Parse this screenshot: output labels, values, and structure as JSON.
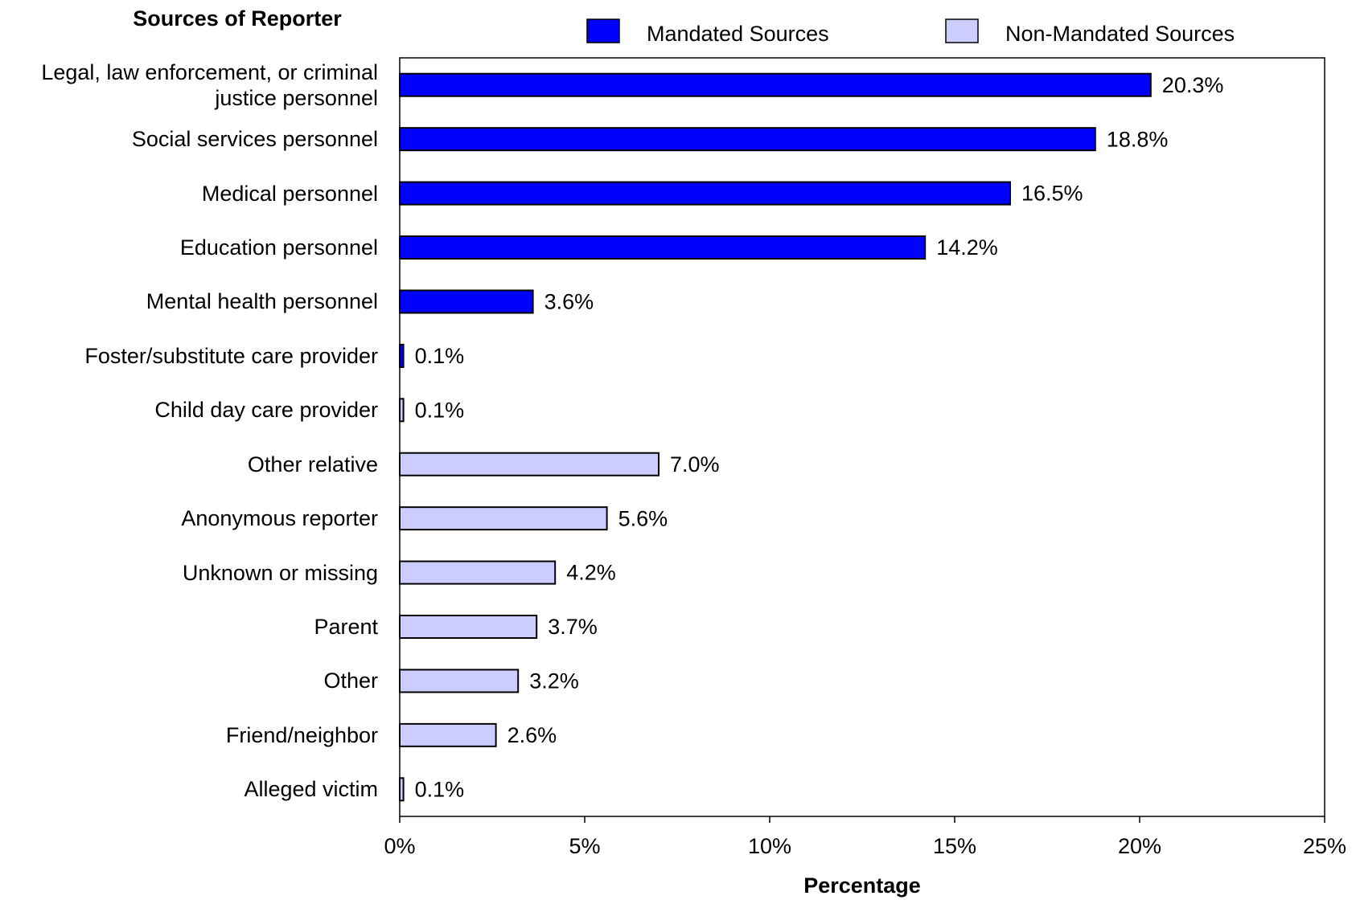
{
  "chart_data": {
    "type": "bar",
    "orientation": "horizontal",
    "title": "Sources of Reporter",
    "x_axis_label": "Percentage",
    "categories": [
      "Legal, law enforcement, or criminal\njustice personnel",
      "Social services personnel",
      "Medical personnel",
      "Education personnel",
      "Mental health personnel",
      "Foster/substitute care provider",
      "Child day care provider",
      "Other relative",
      "Anonymous reporter",
      "Unknown or missing",
      "Parent",
      "Other",
      "Friend/neighbor",
      "Alleged victim"
    ],
    "series": [
      {
        "name": "Mandated Sources",
        "color": "#0000ff",
        "values": [
          20.3,
          18.8,
          16.5,
          14.2,
          3.6,
          0.1,
          null,
          null,
          null,
          null,
          null,
          null,
          null,
          null
        ],
        "value_labels": [
          "20.3%",
          "18.8%",
          "16.5%",
          "14.2%",
          "3.6%",
          "0.1%",
          null,
          null,
          null,
          null,
          null,
          null,
          null,
          null
        ]
      },
      {
        "name": "Non-Mandated Sources",
        "color": "#ccccff",
        "values": [
          null,
          null,
          null,
          null,
          null,
          null,
          0.1,
          7.0,
          5.6,
          4.2,
          3.7,
          3.2,
          2.6,
          0.1
        ],
        "value_labels": [
          null,
          null,
          null,
          null,
          null,
          null,
          "0.1%",
          "7.0%",
          "5.6%",
          "4.2%",
          "3.7%",
          "3.2%",
          "2.6%",
          "0.1%"
        ]
      }
    ],
    "xlim": [
      0,
      25
    ],
    "xticks": [
      {
        "value": 0,
        "label": "0%"
      },
      {
        "value": 5,
        "label": "5%"
      },
      {
        "value": 10,
        "label": "10%"
      },
      {
        "value": 15,
        "label": "15%"
      },
      {
        "value": 20,
        "label": "20%"
      },
      {
        "value": 25,
        "label": "25%"
      }
    ],
    "grid": false,
    "legend": "top"
  }
}
